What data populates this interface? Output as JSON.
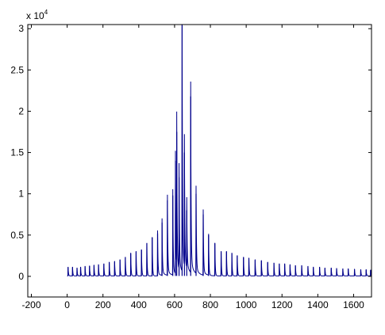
{
  "chart_data": {
    "type": "line",
    "title": "",
    "xlabel": "",
    "ylabel": "",
    "y_scale_note": {
      "base": "x 10",
      "exponent": "4"
    },
    "xlim": [
      -220,
      1700
    ],
    "ylim": [
      -2500,
      30500
    ],
    "x_ticks": [
      -200,
      0,
      200,
      400,
      600,
      800,
      1000,
      1200,
      1400,
      1600
    ],
    "x_tick_labels": [
      "-200",
      "0",
      "200",
      "400",
      "600",
      "800",
      "1000",
      "1200",
      "1400",
      "1600"
    ],
    "y_ticks": [
      0,
      5000,
      10000,
      15000,
      20000,
      25000,
      30000
    ],
    "y_tick_labels": [
      "0",
      "0.5",
      "1",
      "1.5",
      "2",
      "2.5",
      "3"
    ],
    "grid": false,
    "legend": "none",
    "line_color": "#00008b",
    "series": [
      {
        "baseline": 50,
        "peaks": [
          {
            "x": 5,
            "y": 1100
          },
          {
            "x": 30,
            "y": 1100
          },
          {
            "x": 55,
            "y": 1000
          },
          {
            "x": 75,
            "y": 1100
          },
          {
            "x": 100,
            "y": 1200
          },
          {
            "x": 125,
            "y": 1250
          },
          {
            "x": 150,
            "y": 1350
          },
          {
            "x": 175,
            "y": 1400
          },
          {
            "x": 205,
            "y": 1500
          },
          {
            "x": 235,
            "y": 1700
          },
          {
            "x": 265,
            "y": 1800
          },
          {
            "x": 295,
            "y": 2000
          },
          {
            "x": 325,
            "y": 2300
          },
          {
            "x": 355,
            "y": 2800
          },
          {
            "x": 385,
            "y": 3000
          },
          {
            "x": 415,
            "y": 3200
          },
          {
            "x": 445,
            "y": 4000
          },
          {
            "x": 475,
            "y": 4700
          },
          {
            "x": 505,
            "y": 5200
          },
          {
            "x": 530,
            "y": 6500
          },
          {
            "x": 560,
            "y": 9200
          },
          {
            "x": 590,
            "y": 9800
          },
          {
            "x": 605,
            "y": 14000
          },
          {
            "x": 612,
            "y": 17500
          },
          {
            "x": 625,
            "y": 12000
          },
          {
            "x": 642,
            "y": 30500
          },
          {
            "x": 655,
            "y": 15000
          },
          {
            "x": 668,
            "y": 8000
          },
          {
            "x": 690,
            "y": 21800
          },
          {
            "x": 720,
            "y": 10000
          },
          {
            "x": 760,
            "y": 7500
          },
          {
            "x": 790,
            "y": 5000
          },
          {
            "x": 825,
            "y": 4000
          },
          {
            "x": 860,
            "y": 3000
          },
          {
            "x": 890,
            "y": 3000
          },
          {
            "x": 920,
            "y": 2800
          },
          {
            "x": 950,
            "y": 2500
          },
          {
            "x": 985,
            "y": 2300
          },
          {
            "x": 1015,
            "y": 2200
          },
          {
            "x": 1050,
            "y": 2000
          },
          {
            "x": 1085,
            "y": 1900
          },
          {
            "x": 1120,
            "y": 1700
          },
          {
            "x": 1155,
            "y": 1600
          },
          {
            "x": 1185,
            "y": 1500
          },
          {
            "x": 1215,
            "y": 1500
          },
          {
            "x": 1245,
            "y": 1400
          },
          {
            "x": 1275,
            "y": 1300
          },
          {
            "x": 1310,
            "y": 1300
          },
          {
            "x": 1345,
            "y": 1200
          },
          {
            "x": 1375,
            "y": 1100
          },
          {
            "x": 1410,
            "y": 1100
          },
          {
            "x": 1440,
            "y": 1000
          },
          {
            "x": 1475,
            "y": 1000
          },
          {
            "x": 1505,
            "y": 950
          },
          {
            "x": 1540,
            "y": 900
          },
          {
            "x": 1570,
            "y": 900
          },
          {
            "x": 1605,
            "y": 850
          },
          {
            "x": 1640,
            "y": 800
          },
          {
            "x": 1670,
            "y": 800
          },
          {
            "x": 1695,
            "y": 750
          }
        ]
      }
    ]
  }
}
